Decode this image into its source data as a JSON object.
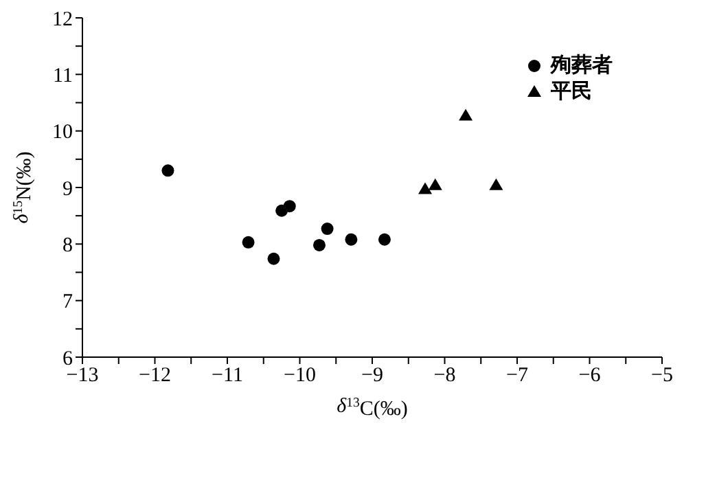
{
  "chart_data": {
    "type": "scatter",
    "xlabel": "δ$^{13}$C(‰)",
    "ylabel": "δ$^{15}$N(‰)",
    "xlim": [
      -13,
      -5
    ],
    "xticks": [
      -13,
      {
        "value": -12.5,
        "label": null
      },
      -12,
      {
        "value": -11.5,
        "label": null
      },
      -11,
      {
        "value": -10.5,
        "label": null
      },
      -10,
      {
        "value": -9.5,
        "label": null
      },
      -9,
      {
        "value": -8.5,
        "label": null
      },
      -8,
      {
        "value": -7.5,
        "label": null
      },
      -7,
      {
        "value": -6.5,
        "label": null
      },
      -6,
      {
        "value": -5.5,
        "label": null
      },
      -5
    ],
    "ylim": [
      6,
      12
    ],
    "yticks": [
      6,
      {
        "value": 6.5,
        "label": null
      },
      7,
      {
        "value": 7.5,
        "label": null
      },
      8,
      {
        "value": 8.5,
        "label": null
      },
      9,
      {
        "value": 9.5,
        "label": null
      },
      10,
      {
        "value": 10.5,
        "label": null
      },
      11,
      {
        "value": 11.5,
        "label": null
      },
      12
    ],
    "grid": false,
    "legend": "top right",
    "series": [
      {
        "name": "殉葬者",
        "color": "#000000",
        "marker": "circle",
        "x": [
          -11.82,
          -10.71,
          -10.36,
          -10.25,
          -10.14,
          -9.73,
          -9.62,
          -9.29,
          -8.83
        ],
        "values": [
          9.3,
          8.03,
          7.74,
          8.59,
          8.67,
          7.98,
          8.27,
          8.08,
          8.08
        ]
      },
      {
        "name": "平民",
        "color": "#000000",
        "marker": "triangle",
        "x": [
          -8.27,
          -8.13,
          -7.71,
          -7.29
        ],
        "values": [
          8.97,
          9.04,
          10.27,
          9.04
        ]
      }
    ]
  }
}
